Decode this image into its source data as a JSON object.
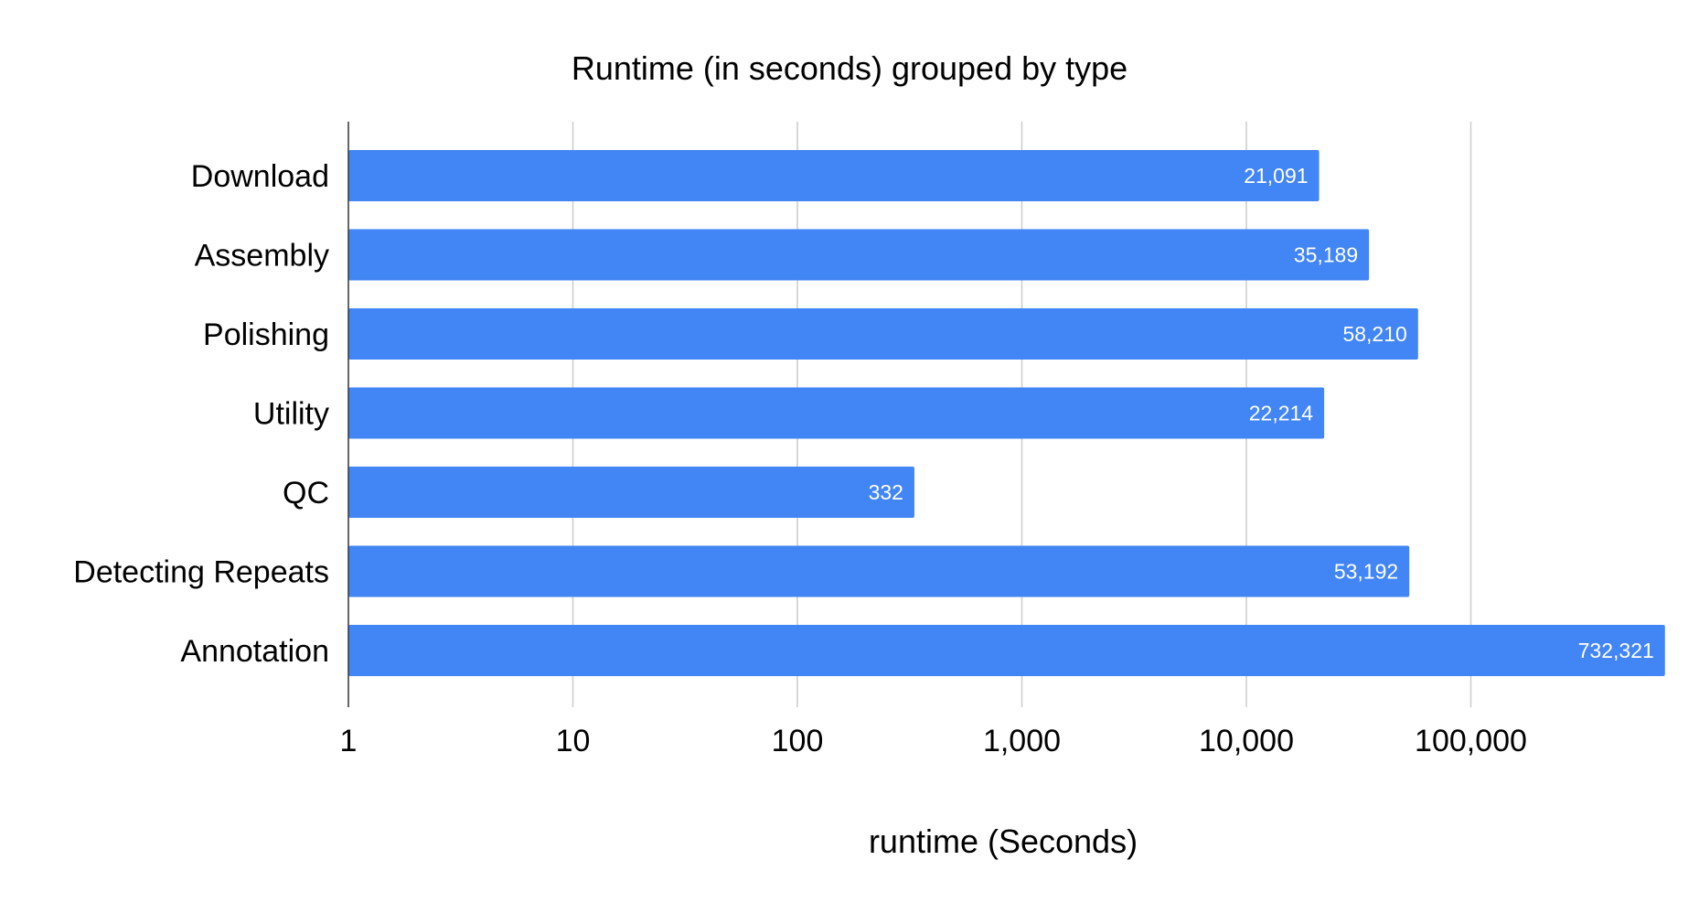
{
  "chart_data": {
    "type": "bar",
    "orientation": "horizontal",
    "title": "Runtime (in seconds) grouped by type",
    "xlabel": "runtime (Seconds)",
    "ylabel": "",
    "x_scale": "log",
    "xlim": [
      1,
      732321
    ],
    "x_ticks": [
      1,
      10,
      100,
      1000,
      10000,
      100000
    ],
    "x_tick_labels": [
      "1",
      "10",
      "100",
      "1,000",
      "10,000",
      "100,000"
    ],
    "categories": [
      "Download",
      "Assembly",
      "Polishing",
      "Utility",
      "QC",
      "Detecting Repeats",
      "Annotation"
    ],
    "values": [
      21091,
      35189,
      58210,
      22214,
      332,
      53192,
      732321
    ],
    "value_labels": [
      "21,091",
      "35,189",
      "58,210",
      "22,214",
      "332",
      "53,192",
      "732,321"
    ],
    "grid": true,
    "legend": "none",
    "bar_color": "#4285f4"
  }
}
